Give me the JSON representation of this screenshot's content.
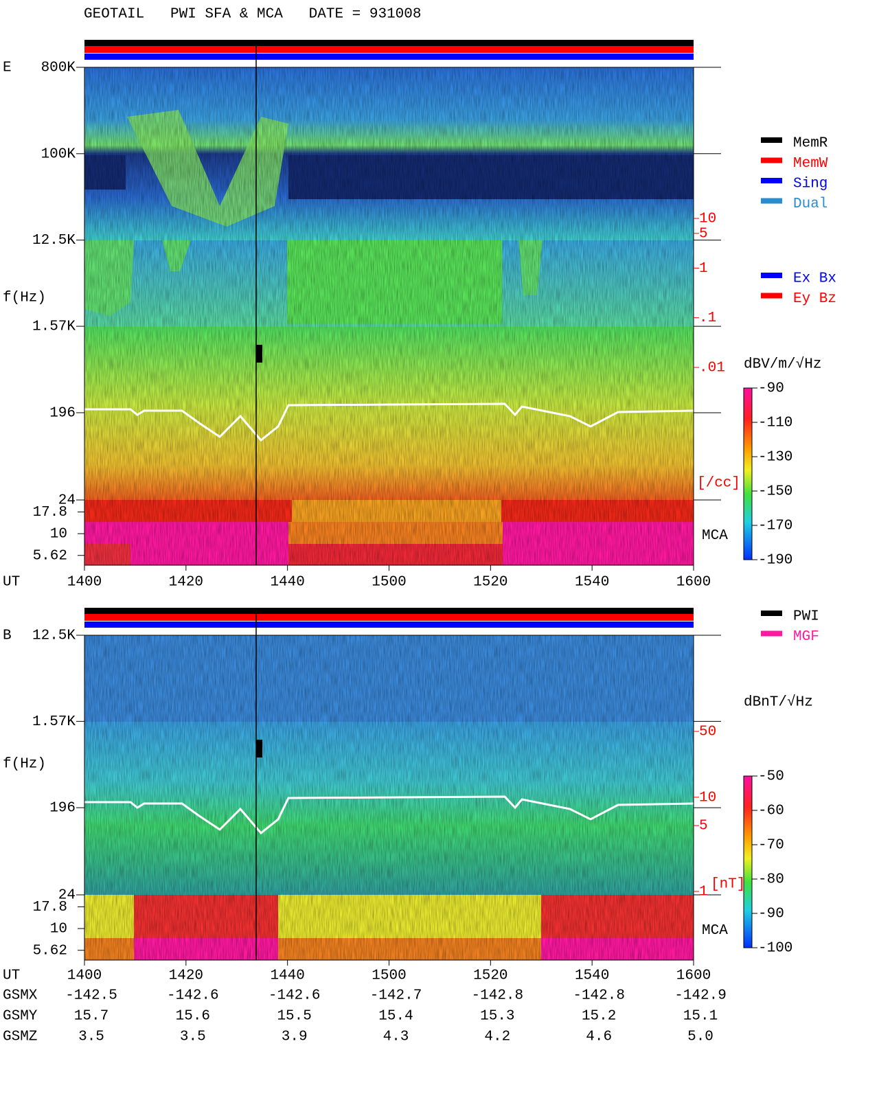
{
  "chart_data": [
    {
      "type": "spectrogram",
      "title": "GEOTAIL   PWI SFA & MCA   DATE = 931008",
      "component": "E",
      "ylabel": "f(Hz)",
      "xlabel": "UT",
      "x": [
        "1400",
        "1420",
        "1440",
        "1500",
        "1520",
        "1540",
        "1600"
      ],
      "log_y": true,
      "ylim": [
        24,
        800000
      ],
      "yticks": [
        {
          "value": 800000,
          "label": "800K"
        },
        {
          "value": 100000,
          "label": "100K"
        },
        {
          "value": 12500,
          "label": "12.5K"
        },
        {
          "value": 1570,
          "label": "1.57K"
        },
        196,
        24
      ],
      "mca_label": "MCA",
      "mca_channels": [
        17.8,
        10,
        5.62
      ],
      "legend": [
        {
          "name": "MemR",
          "color": "#000000"
        },
        {
          "name": "MemW",
          "color": "#ff0000"
        },
        {
          "name": "Sing",
          "color": "#0000ff"
        },
        {
          "name": "Dual",
          "color": "#2a8ccc"
        }
      ],
      "legend2": [
        {
          "name": "Ex Bx",
          "color": "#0000ff"
        },
        {
          "name": "Ey Bz",
          "color": "#ff0000"
        }
      ],
      "y2label": "[/cc]",
      "y2lim": [
        0.01,
        10
      ],
      "y2ticks": [
        10,
        5,
        1,
        {
          "value": 0.1,
          "label": ".1"
        },
        {
          "value": 0.01,
          "label": ".01"
        }
      ],
      "colorbar": {
        "label": "dBV/m/√Hz",
        "lim": [
          -190,
          -90
        ],
        "ticks": [
          -90,
          -110,
          -130,
          -150,
          -170,
          -190
        ]
      }
    },
    {
      "type": "spectrogram",
      "component": "B",
      "ylabel": "f(Hz)",
      "xlabel": "UT",
      "x": [
        "1400",
        "1420",
        "1440",
        "1500",
        "1520",
        "1540",
        "1600"
      ],
      "log_y": true,
      "ylim": [
        24,
        12500
      ],
      "yticks": [
        {
          "value": 12500,
          "label": "12.5K"
        },
        {
          "value": 1570,
          "label": "1.57K"
        },
        196,
        24
      ],
      "mca_label": "MCA",
      "mca_channels": [
        17.8,
        10,
        5.62
      ],
      "legend": [
        {
          "name": "PWI",
          "color": "#000000"
        },
        {
          "name": "MGF",
          "color": "#ff1aa0"
        }
      ],
      "y2label": "[nT]",
      "y2lim": [
        1,
        50
      ],
      "y2ticks": [
        50,
        10,
        5,
        1
      ],
      "colorbar": {
        "label": "dBnT/√Hz",
        "lim": [
          -100,
          -50
        ],
        "ticks": [
          -50,
          -60,
          -70,
          -80,
          -90,
          -100
        ]
      },
      "ephemeris": [
        {
          "name": "GSMX",
          "values": [
            "-142.5",
            "-142.6",
            "-142.6",
            "-142.7",
            "-142.8",
            "-142.8",
            "-142.9"
          ]
        },
        {
          "name": "GSMY",
          "values": [
            "15.7",
            "15.6",
            "15.5",
            "15.4",
            "15.3",
            "15.2",
            "15.1"
          ]
        },
        {
          "name": "GSMZ",
          "values": [
            "3.5",
            "3.5",
            "3.9",
            "4.3",
            "4.2",
            "4.6",
            "5.0"
          ]
        }
      ]
    }
  ]
}
